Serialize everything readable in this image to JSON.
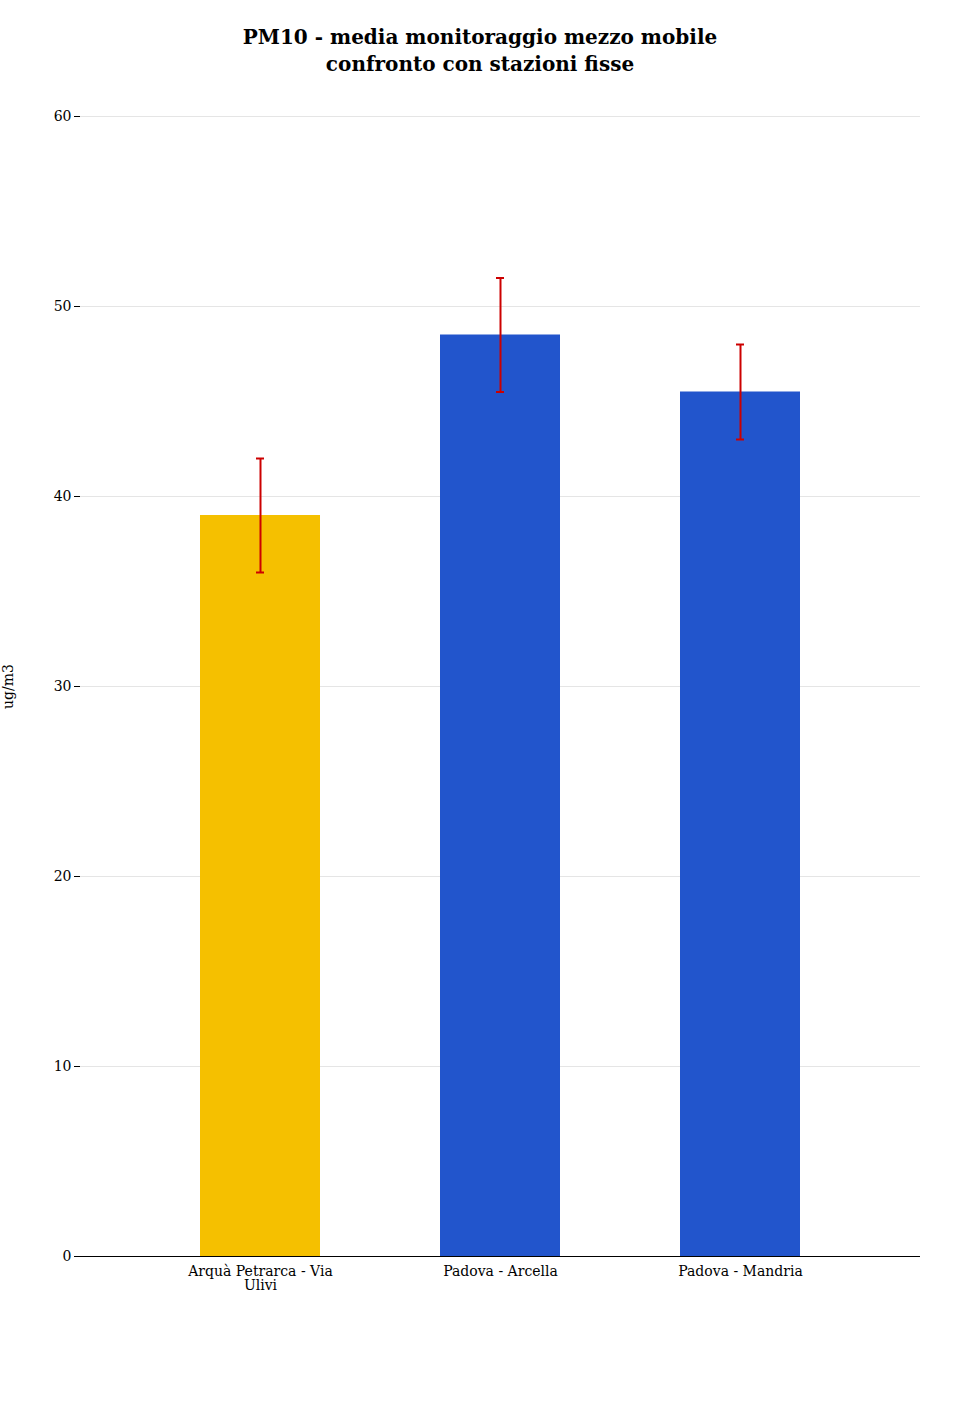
{
  "chart_data": {
    "type": "bar",
    "title": "PM10 - media monitoraggio mezzo mobile\nconfronto con stazioni fisse",
    "categories": [
      "Arquà Petrarca - Via\nUlivi",
      "Padova - Arcella",
      "Padova - Mandria"
    ],
    "values": [
      39.0,
      48.5,
      45.5
    ],
    "errors": [
      3.0,
      3.0,
      2.5
    ],
    "colors": [
      "#F5C000",
      "#2255CC",
      "#2255CC"
    ],
    "error_color": "#CC0000",
    "ylabel": "ug/m3",
    "ylim": [
      0,
      60
    ],
    "yticks": [
      0,
      10,
      20,
      30,
      40,
      50,
      60
    ],
    "grid": true
  }
}
